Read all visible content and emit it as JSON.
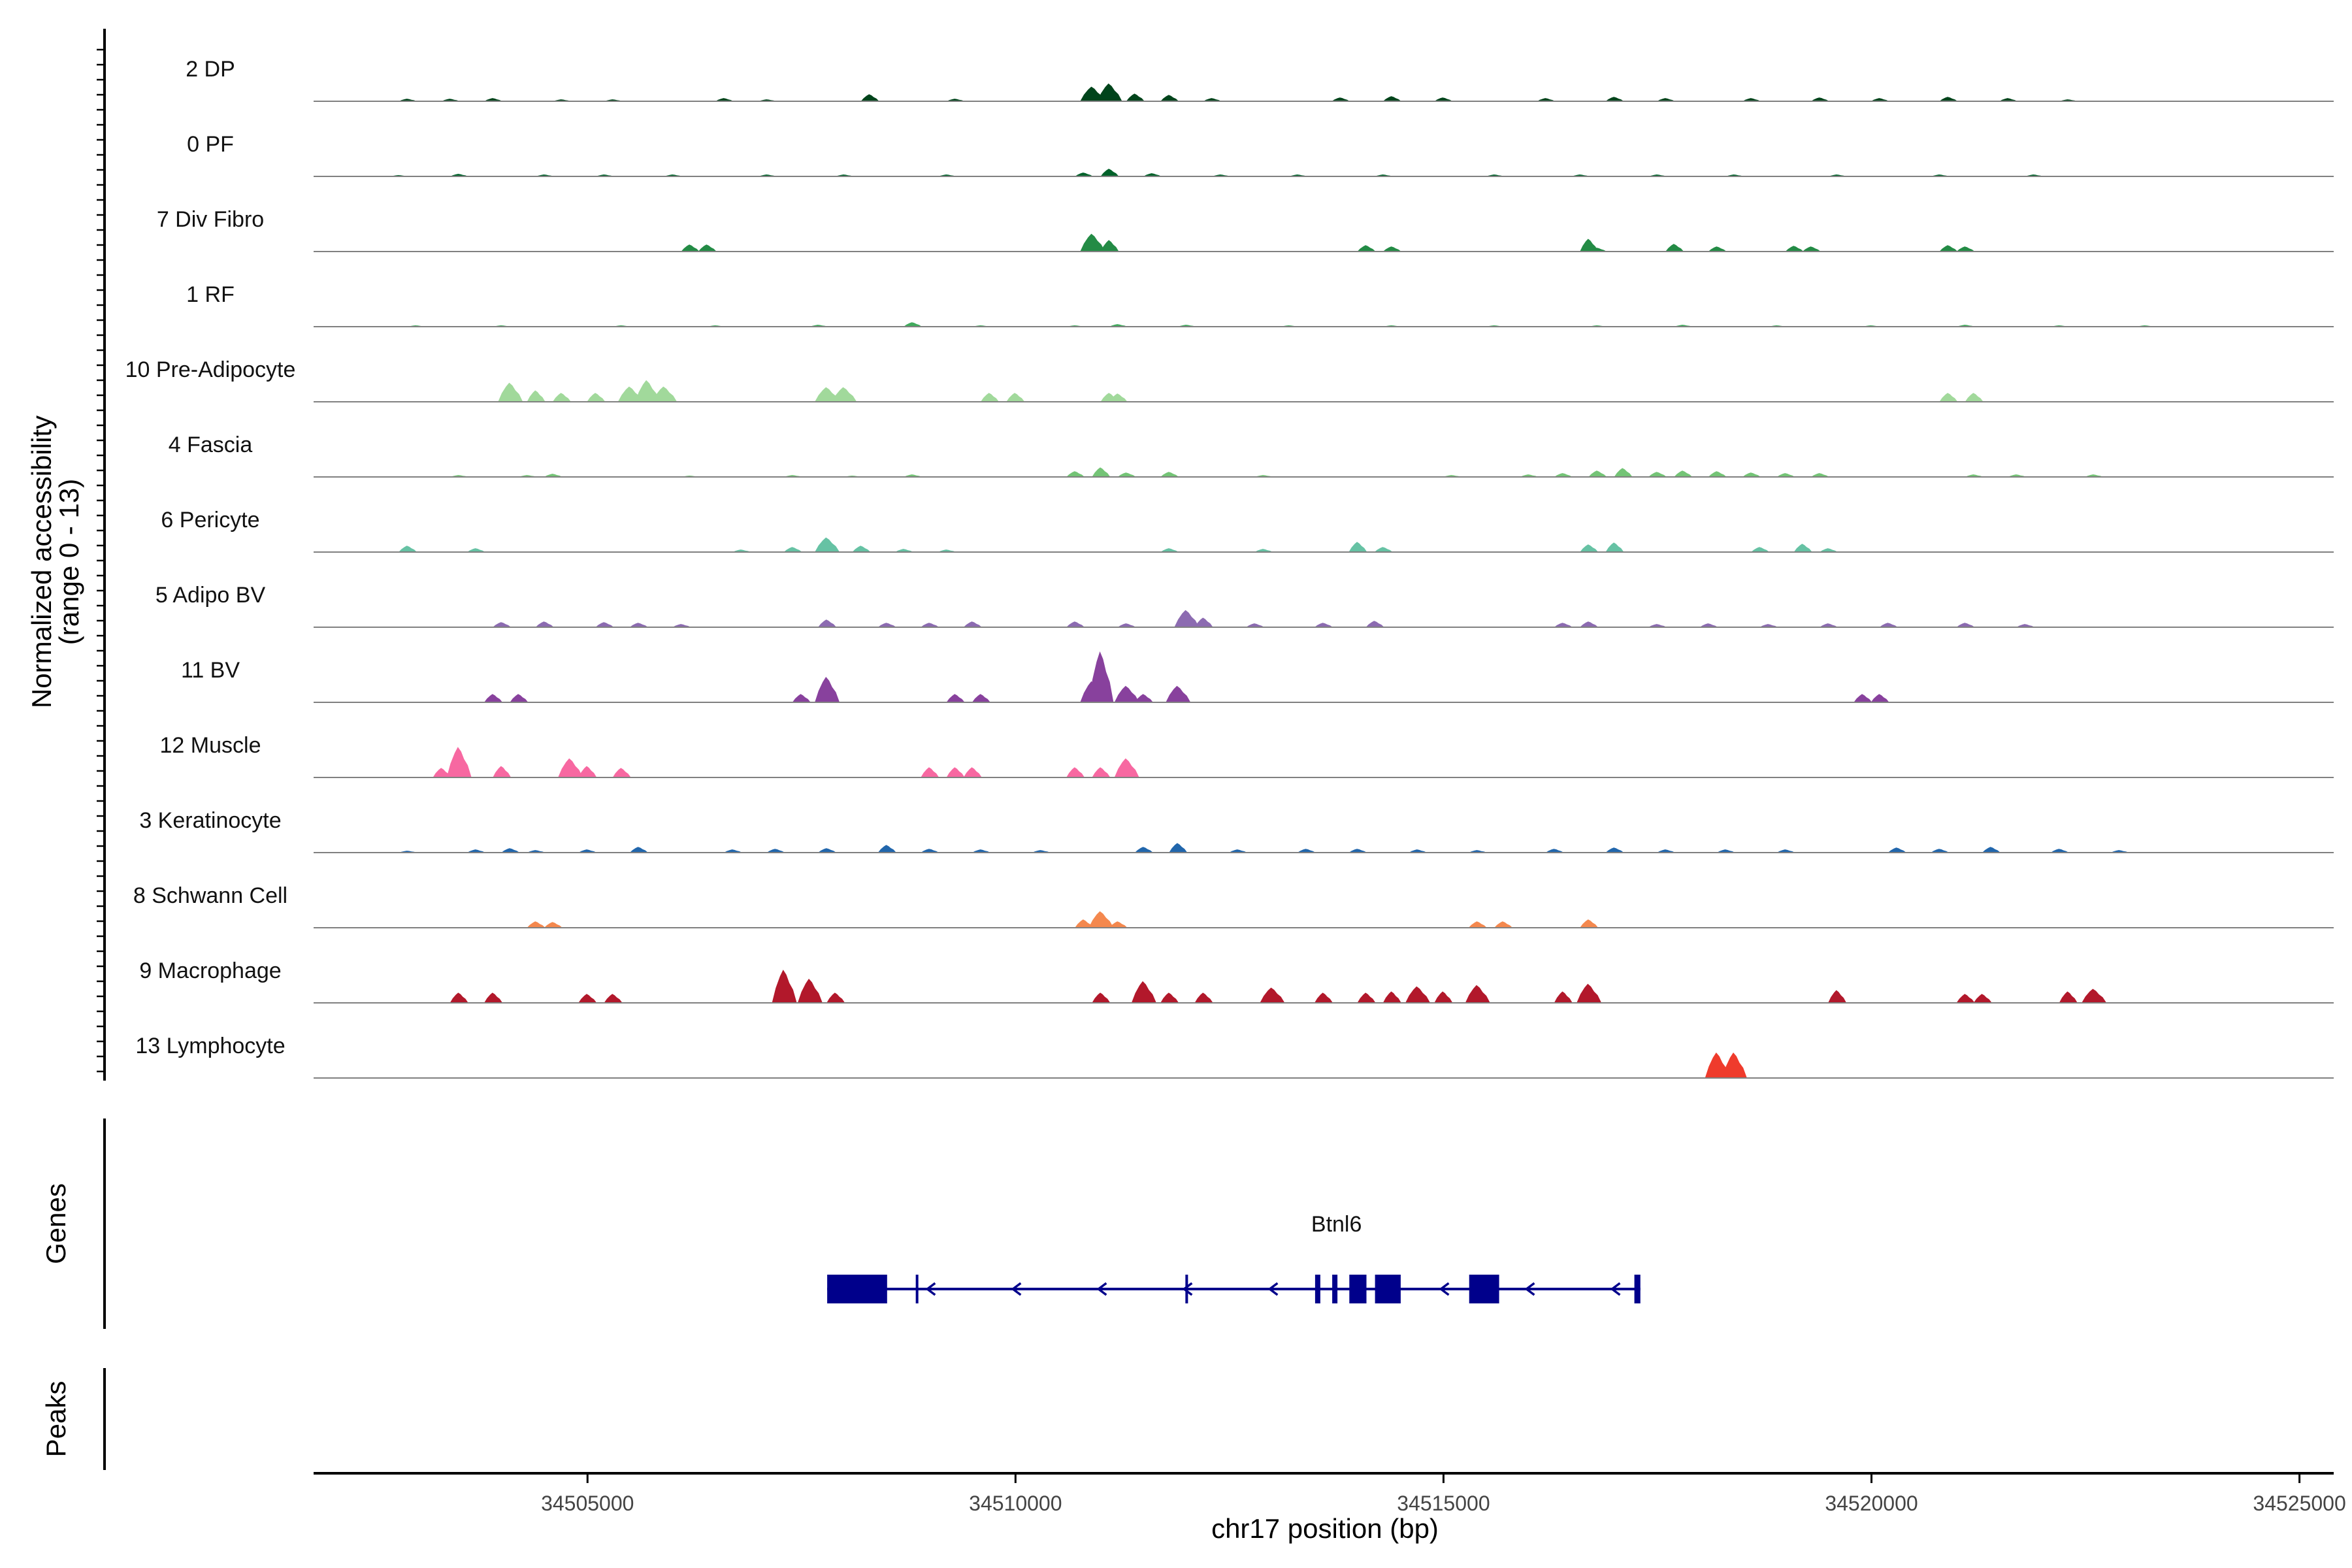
{
  "chart_data": {
    "type": "genome-track",
    "ylabel": "Normalized accessibility",
    "ylabel_sub": "(range 0 - 13)",
    "xlabel": "chr17 position (bp)",
    "xlim": [
      34501800,
      34525400
    ],
    "x_ticks": [
      34505000,
      34510000,
      34515000,
      34520000,
      34525000
    ],
    "x_tick_labels": [
      "34505000",
      "34510000",
      "34515000",
      "34520000",
      "34525000"
    ],
    "y_max": 13,
    "colors": {
      "axis": "#000000",
      "baseline": "#808080",
      "gene": "#00008B"
    },
    "tracks": [
      {
        "label": "2 DP",
        "color": "#00441B",
        "peaks": [
          [
            34502900,
            0.4
          ],
          [
            34503400,
            0.4
          ],
          [
            34503900,
            0.5
          ],
          [
            34504700,
            0.3
          ],
          [
            34505300,
            0.3
          ],
          [
            34506600,
            0.5
          ],
          [
            34507100,
            0.3
          ],
          [
            34508300,
            1.1
          ],
          [
            34509300,
            0.4
          ],
          [
            34510900,
            2.3
          ],
          [
            34511100,
            2.8
          ],
          [
            34511400,
            1.2
          ],
          [
            34511800,
            1.0
          ],
          [
            34512300,
            0.5
          ],
          [
            34513800,
            0.6
          ],
          [
            34514400,
            0.8
          ],
          [
            34515000,
            0.6
          ],
          [
            34516200,
            0.5
          ],
          [
            34517000,
            0.7
          ],
          [
            34517600,
            0.5
          ],
          [
            34518600,
            0.5
          ],
          [
            34519400,
            0.6
          ],
          [
            34520100,
            0.5
          ],
          [
            34520900,
            0.7
          ],
          [
            34521600,
            0.5
          ],
          [
            34522300,
            0.3
          ]
        ]
      },
      {
        "label": "0 PF",
        "color": "#00622A",
        "peaks": [
          [
            34502800,
            0.2
          ],
          [
            34503500,
            0.4
          ],
          [
            34504500,
            0.3
          ],
          [
            34505200,
            0.3
          ],
          [
            34506000,
            0.3
          ],
          [
            34507100,
            0.3
          ],
          [
            34508000,
            0.3
          ],
          [
            34509200,
            0.3
          ],
          [
            34510800,
            0.6
          ],
          [
            34511100,
            1.2
          ],
          [
            34511600,
            0.5
          ],
          [
            34512400,
            0.3
          ],
          [
            34513300,
            0.3
          ],
          [
            34514300,
            0.3
          ],
          [
            34515600,
            0.3
          ],
          [
            34516600,
            0.3
          ],
          [
            34517500,
            0.3
          ],
          [
            34518400,
            0.3
          ],
          [
            34519600,
            0.3
          ],
          [
            34520800,
            0.3
          ],
          [
            34521900,
            0.3
          ]
        ]
      },
      {
        "label": "7 Div Fibro",
        "color": "#238B45",
        "peaks": [
          [
            34506200,
            1.1
          ],
          [
            34506400,
            1.1
          ],
          [
            34510900,
            2.8
          ],
          [
            34511100,
            1.8
          ],
          [
            34514100,
            1.0
          ],
          [
            34514400,
            0.8
          ],
          [
            34516700,
            2.0
          ],
          [
            34516800,
            0.6
          ],
          [
            34517700,
            1.2
          ],
          [
            34518200,
            0.8
          ],
          [
            34519100,
            0.9
          ],
          [
            34519300,
            0.8
          ],
          [
            34520900,
            1.0
          ],
          [
            34521100,
            0.8
          ]
        ]
      },
      {
        "label": "1 RF",
        "color": "#41AB5D",
        "peaks": [
          [
            34503000,
            0.2
          ],
          [
            34504000,
            0.2
          ],
          [
            34505400,
            0.2
          ],
          [
            34506500,
            0.2
          ],
          [
            34507700,
            0.3
          ],
          [
            34508800,
            0.7
          ],
          [
            34509600,
            0.2
          ],
          [
            34510700,
            0.2
          ],
          [
            34511200,
            0.4
          ],
          [
            34512000,
            0.3
          ],
          [
            34513200,
            0.2
          ],
          [
            34514400,
            0.2
          ],
          [
            34515600,
            0.2
          ],
          [
            34516800,
            0.2
          ],
          [
            34517800,
            0.3
          ],
          [
            34518900,
            0.2
          ],
          [
            34520000,
            0.2
          ],
          [
            34521100,
            0.3
          ],
          [
            34522200,
            0.2
          ],
          [
            34523200,
            0.2
          ]
        ]
      },
      {
        "label": "10 Pre-Adipocyte",
        "color": "#A1D99B",
        "peaks": [
          [
            34504100,
            3.0
          ],
          [
            34504400,
            1.8
          ],
          [
            34504700,
            1.4
          ],
          [
            34505100,
            1.4
          ],
          [
            34505500,
            2.4
          ],
          [
            34505700,
            3.4
          ],
          [
            34505900,
            2.4
          ],
          [
            34507800,
            2.3
          ],
          [
            34508000,
            2.3
          ],
          [
            34509700,
            1.4
          ],
          [
            34510000,
            1.4
          ],
          [
            34511100,
            1.4
          ],
          [
            34511200,
            1.3
          ],
          [
            34520900,
            1.4
          ],
          [
            34521200,
            1.4
          ]
        ]
      },
      {
        "label": "4 Fascia",
        "color": "#74C476",
        "peaks": [
          [
            34503500,
            0.3
          ],
          [
            34504300,
            0.3
          ],
          [
            34504600,
            0.5
          ],
          [
            34506200,
            0.2
          ],
          [
            34507400,
            0.3
          ],
          [
            34508100,
            0.2
          ],
          [
            34508800,
            0.4
          ],
          [
            34510700,
            0.9
          ],
          [
            34511000,
            1.5
          ],
          [
            34511300,
            0.7
          ],
          [
            34511800,
            0.8
          ],
          [
            34512900,
            0.3
          ],
          [
            34515100,
            0.3
          ],
          [
            34516000,
            0.4
          ],
          [
            34516400,
            0.6
          ],
          [
            34516800,
            1.0
          ],
          [
            34517100,
            1.4
          ],
          [
            34517500,
            0.8
          ],
          [
            34517800,
            1.0
          ],
          [
            34518200,
            0.9
          ],
          [
            34518600,
            0.7
          ],
          [
            34519000,
            0.6
          ],
          [
            34519400,
            0.6
          ],
          [
            34521200,
            0.4
          ],
          [
            34521700,
            0.4
          ],
          [
            34522600,
            0.4
          ]
        ]
      },
      {
        "label": "6 Pericyte",
        "color": "#66C2A4",
        "peaks": [
          [
            34502900,
            1.0
          ],
          [
            34503700,
            0.6
          ],
          [
            34506800,
            0.4
          ],
          [
            34507400,
            0.8
          ],
          [
            34507800,
            2.3
          ],
          [
            34508200,
            1.0
          ],
          [
            34508700,
            0.5
          ],
          [
            34509200,
            0.4
          ],
          [
            34511800,
            0.6
          ],
          [
            34512900,
            0.5
          ],
          [
            34514000,
            1.6
          ],
          [
            34514300,
            0.8
          ],
          [
            34516700,
            1.2
          ],
          [
            34517000,
            1.5
          ],
          [
            34518700,
            0.8
          ],
          [
            34519200,
            1.3
          ],
          [
            34519500,
            0.6
          ]
        ]
      },
      {
        "label": "5 Adipo BV",
        "color": "#8C6BB1",
        "peaks": [
          [
            34504000,
            0.8
          ],
          [
            34504500,
            0.9
          ],
          [
            34505200,
            0.8
          ],
          [
            34505600,
            0.7
          ],
          [
            34506100,
            0.5
          ],
          [
            34507800,
            1.2
          ],
          [
            34508500,
            0.7
          ],
          [
            34509000,
            0.7
          ],
          [
            34509500,
            0.9
          ],
          [
            34510700,
            0.9
          ],
          [
            34511300,
            0.6
          ],
          [
            34512000,
            2.7
          ],
          [
            34512200,
            1.5
          ],
          [
            34512800,
            0.6
          ],
          [
            34513600,
            0.7
          ],
          [
            34514200,
            1.0
          ],
          [
            34516400,
            0.7
          ],
          [
            34516700,
            0.9
          ],
          [
            34517500,
            0.5
          ],
          [
            34518100,
            0.6
          ],
          [
            34518800,
            0.5
          ],
          [
            34519500,
            0.6
          ],
          [
            34520200,
            0.7
          ],
          [
            34521100,
            0.7
          ],
          [
            34521800,
            0.5
          ]
        ]
      },
      {
        "label": "11 BV",
        "color": "#88419D",
        "peaks": [
          [
            34503900,
            1.3
          ],
          [
            34504200,
            1.3
          ],
          [
            34507500,
            1.3
          ],
          [
            34507800,
            4.0
          ],
          [
            34509300,
            1.3
          ],
          [
            34509600,
            1.3
          ],
          [
            34510900,
            3.3
          ],
          [
            34511000,
            8.0
          ],
          [
            34511300,
            2.6
          ],
          [
            34511500,
            1.3
          ],
          [
            34511900,
            2.6
          ],
          [
            34519900,
            1.3
          ],
          [
            34520100,
            1.3
          ]
        ]
      },
      {
        "label": "12 Muscle",
        "color": "#F768A1",
        "peaks": [
          [
            34503300,
            1.5
          ],
          [
            34503500,
            4.8
          ],
          [
            34504000,
            1.8
          ],
          [
            34504800,
            3.0
          ],
          [
            34505000,
            1.8
          ],
          [
            34505400,
            1.5
          ],
          [
            34509000,
            1.6
          ],
          [
            34509300,
            1.6
          ],
          [
            34509500,
            1.6
          ],
          [
            34510700,
            1.6
          ],
          [
            34511000,
            1.6
          ],
          [
            34511300,
            3.0
          ]
        ]
      },
      {
        "label": "3 Keratinocyte",
        "color": "#2166AC",
        "peaks": [
          [
            34502900,
            0.3
          ],
          [
            34503700,
            0.5
          ],
          [
            34504100,
            0.7
          ],
          [
            34504400,
            0.4
          ],
          [
            34505000,
            0.5
          ],
          [
            34505600,
            0.9
          ],
          [
            34506700,
            0.5
          ],
          [
            34507200,
            0.6
          ],
          [
            34507800,
            0.7
          ],
          [
            34508500,
            1.2
          ],
          [
            34509000,
            0.6
          ],
          [
            34509600,
            0.5
          ],
          [
            34510300,
            0.4
          ],
          [
            34511500,
            0.9
          ],
          [
            34511900,
            1.5
          ],
          [
            34512600,
            0.5
          ],
          [
            34513400,
            0.6
          ],
          [
            34514000,
            0.6
          ],
          [
            34514700,
            0.5
          ],
          [
            34515400,
            0.4
          ],
          [
            34516300,
            0.6
          ],
          [
            34517000,
            0.8
          ],
          [
            34517600,
            0.5
          ],
          [
            34518300,
            0.5
          ],
          [
            34519000,
            0.5
          ],
          [
            34520300,
            0.8
          ],
          [
            34520800,
            0.6
          ],
          [
            34521400,
            0.9
          ],
          [
            34522200,
            0.6
          ],
          [
            34522900,
            0.4
          ]
        ]
      },
      {
        "label": "8 Schwann Cell",
        "color": "#F4884E",
        "peaks": [
          [
            34504400,
            1.0
          ],
          [
            34504600,
            0.9
          ],
          [
            34510800,
            1.3
          ],
          [
            34511000,
            2.6
          ],
          [
            34511200,
            1.0
          ],
          [
            34515400,
            1.0
          ],
          [
            34515700,
            1.0
          ],
          [
            34516700,
            1.3
          ]
        ]
      },
      {
        "label": "9 Macrophage",
        "color": "#B2182B",
        "peaks": [
          [
            34503500,
            1.6
          ],
          [
            34503900,
            1.6
          ],
          [
            34505000,
            1.4
          ],
          [
            34505300,
            1.4
          ],
          [
            34507300,
            5.2
          ],
          [
            34507600,
            3.8
          ],
          [
            34507900,
            1.6
          ],
          [
            34511000,
            1.6
          ],
          [
            34511500,
            3.4
          ],
          [
            34511800,
            1.6
          ],
          [
            34512200,
            1.6
          ],
          [
            34513000,
            2.4
          ],
          [
            34513600,
            1.6
          ],
          [
            34514100,
            1.6
          ],
          [
            34514400,
            1.8
          ],
          [
            34514700,
            2.6
          ],
          [
            34515000,
            1.8
          ],
          [
            34515400,
            2.8
          ],
          [
            34516400,
            1.8
          ],
          [
            34516700,
            3.0
          ],
          [
            34519600,
            2.0
          ],
          [
            34521100,
            1.4
          ],
          [
            34521300,
            1.4
          ],
          [
            34522300,
            1.8
          ],
          [
            34522600,
            2.2
          ]
        ]
      },
      {
        "label": "13 Lymphocyte",
        "color": "#EF3B2C",
        "peaks": [
          [
            34518200,
            4.0
          ],
          [
            34518400,
            4.0
          ]
        ]
      }
    ],
    "genes_panel": {
      "title": "Genes",
      "name": "Btnl6",
      "start": 34507800,
      "end": 34517300,
      "exons": [
        [
          34507800,
          34508500
        ],
        [
          34513500,
          34513510
        ],
        [
          34513700,
          34513720
        ],
        [
          34513900,
          34514100
        ],
        [
          34514200,
          34514500
        ],
        [
          34515300,
          34515650
        ],
        [
          34517230,
          34517300
        ]
      ],
      "thin_marks": [
        34508850,
        34512000
      ],
      "strand_arrows": [
        34509000,
        34510000,
        34511000,
        34512000,
        34513000,
        34515000,
        34516000,
        34517000
      ]
    },
    "peaks_panel": {
      "title": "Peaks"
    }
  }
}
